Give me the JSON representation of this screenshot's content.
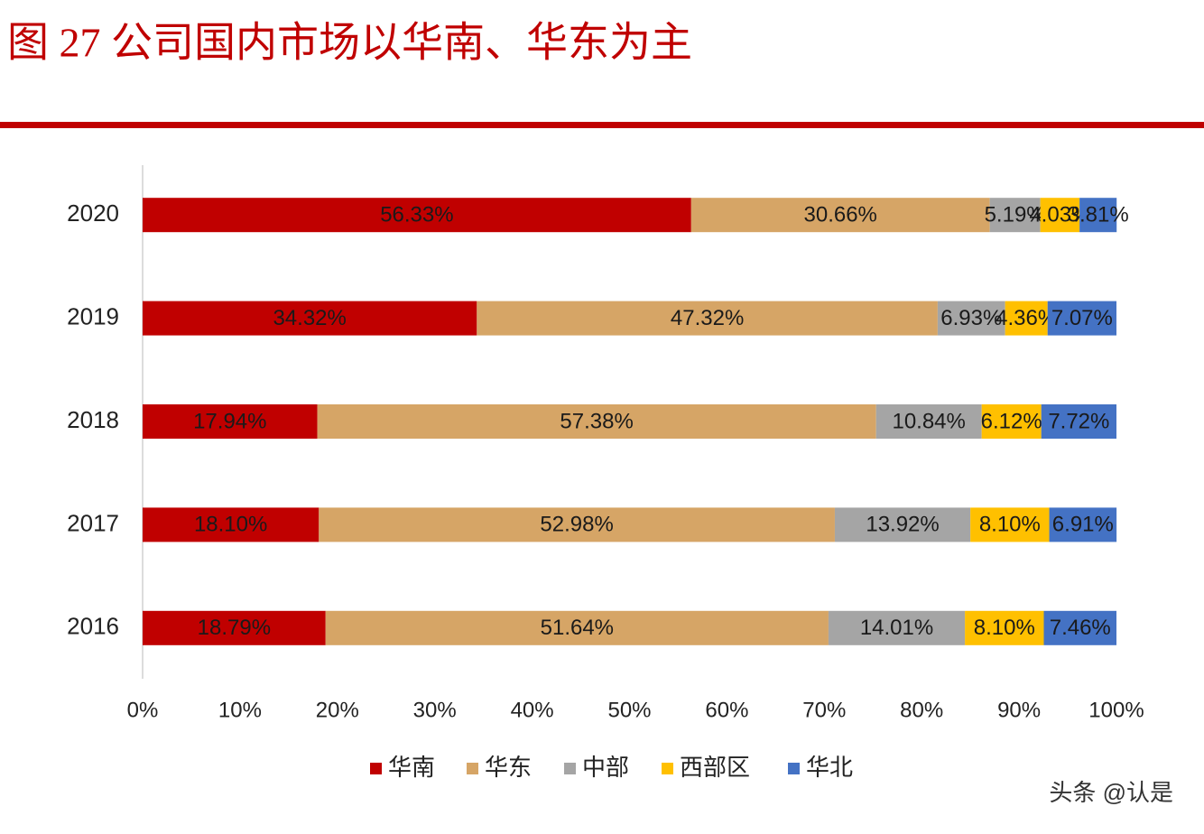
{
  "chart_data": {
    "type": "stacked-bar-horizontal",
    "title": "图 27 公司国内市场以华南、华东为主",
    "categories": [
      "2020",
      "2019",
      "2018",
      "2017",
      "2016"
    ],
    "series": [
      {
        "name": "华南",
        "color": "#c00000",
        "values": [
          56.33,
          34.32,
          17.94,
          18.1,
          18.79
        ],
        "value_labels": [
          "56.33%",
          "34.32%",
          "17.94%",
          "18.10%",
          "18.79%"
        ]
      },
      {
        "name": "华东",
        "color": "#d6a566",
        "values": [
          30.66,
          47.32,
          57.38,
          52.98,
          51.64
        ],
        "value_labels": [
          "30.66%",
          "47.32%",
          "57.38%",
          "52.98%",
          "51.64%"
        ]
      },
      {
        "name": "中部",
        "color": "#a5a5a5",
        "values": [
          5.19,
          6.93,
          10.84,
          13.92,
          14.01
        ],
        "value_labels": [
          "5.19%",
          "6.93%",
          "10.84%",
          "13.92%",
          "14.01%"
        ]
      },
      {
        "name": "西部区",
        "color": "#ffc000",
        "values": [
          4.03,
          4.36,
          6.12,
          8.1,
          8.1
        ],
        "value_labels": [
          "4.03%",
          "4.36%",
          "6.12%",
          "8.10%",
          "8.10%"
        ]
      },
      {
        "name": "华北",
        "color": "#4472c4",
        "values": [
          3.81,
          7.07,
          7.72,
          6.91,
          7.46
        ],
        "value_labels": [
          "3.81%",
          "7.07%",
          "7.72%",
          "6.91%",
          "7.46%"
        ]
      }
    ],
    "xlim": [
      0,
      100
    ],
    "xticks": [
      {
        "value": 0,
        "label": "0%"
      },
      {
        "value": 10,
        "label": "10%"
      },
      {
        "value": 20,
        "label": "20%"
      },
      {
        "value": 30,
        "label": "30%"
      },
      {
        "value": 40,
        "label": "40%"
      },
      {
        "value": 50,
        "label": "50%"
      },
      {
        "value": 60,
        "label": "60%"
      },
      {
        "value": 70,
        "label": "70%"
      },
      {
        "value": 80,
        "label": "80%"
      },
      {
        "value": 90,
        "label": "90%"
      },
      {
        "value": 100,
        "label": "100%"
      }
    ],
    "legend": "bottom",
    "watermark": "头条 @认是"
  }
}
